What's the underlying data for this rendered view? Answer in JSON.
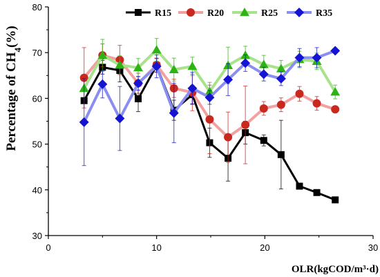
{
  "chart_data": {
    "type": "line",
    "title": "",
    "xlabel": "OLR(kgCOD/m³·d)",
    "ylabel_main": "Percentage of CH",
    "ylabel_sub": "4",
    "ylabel_tail": "(%)",
    "xlim": [
      0,
      30
    ],
    "ylim": [
      30,
      80
    ],
    "xticks": [
      0,
      10,
      20,
      30
    ],
    "yticks": [
      30,
      40,
      50,
      60,
      70,
      80
    ],
    "grid": false,
    "legend_position": "top",
    "x": [
      3.3,
      5.0,
      6.6,
      8.3,
      10.0,
      11.6,
      13.3,
      14.9,
      16.6,
      18.2,
      19.9,
      21.5,
      23.2,
      24.8,
      26.5
    ],
    "series": [
      {
        "name": "R15",
        "color": "#000000",
        "marker": "square",
        "fill": "#000000",
        "values": [
          59.5,
          66.8,
          66.1,
          59.9,
          67.2,
          57.4,
          60.8,
          50.3,
          46.9,
          52.5,
          50.8,
          47.7,
          40.8,
          39.4,
          37.8
        ],
        "errors": [
          null,
          1.5,
          2.5,
          2.8,
          1.5,
          2.2,
          2.0,
          3.2,
          5.0,
          2.5,
          1.2,
          7.5,
          null,
          null,
          null
        ]
      },
      {
        "name": "R20",
        "color": "#f2a0a0",
        "marker": "circle",
        "fill": "#c8281e",
        "values": [
          64.5,
          69.4,
          68.4,
          63.3,
          67.3,
          62.2,
          61.3,
          55.4,
          51.5,
          54.2,
          57.8,
          58.6,
          61.0,
          58.9,
          57.6
        ],
        "errors": [
          6.6,
          2.5,
          3.2,
          2.2,
          1.5,
          2.0,
          4.0,
          7.5,
          5.5,
          8.5,
          1.5,
          1.5,
          1.6,
          1.5,
          null
        ]
      },
      {
        "name": "R25",
        "color": "#a8e28a",
        "marker": "triangle",
        "fill": "#2db414",
        "values": [
          62.2,
          69.4,
          67.3,
          66.7,
          70.6,
          66.3,
          67.0,
          61.5,
          67.2,
          69.4,
          67.4,
          66.5,
          68.5,
          68.1,
          61.4
        ],
        "errors": [
          null,
          3.5,
          2.0,
          2.0,
          2.5,
          2.5,
          2.0,
          2.0,
          4.0,
          2.0,
          2.0,
          1.8,
          1.8,
          1.8,
          1.5
        ]
      },
      {
        "name": "R35",
        "color": "#8a8ef0",
        "marker": "diamond",
        "fill": "#1414d2",
        "values": [
          54.8,
          63.1,
          55.6,
          63.3,
          67.0,
          56.8,
          62.2,
          60.2,
          64.1,
          67.7,
          65.3,
          64.3,
          68.9,
          68.9,
          70.4
        ],
        "errors": [
          9.5,
          3.0,
          7.0,
          1.5,
          2.5,
          6.5,
          3.5,
          1.5,
          3.5,
          1.8,
          1.5,
          1.5,
          2.0,
          2.2,
          null
        ]
      }
    ]
  }
}
